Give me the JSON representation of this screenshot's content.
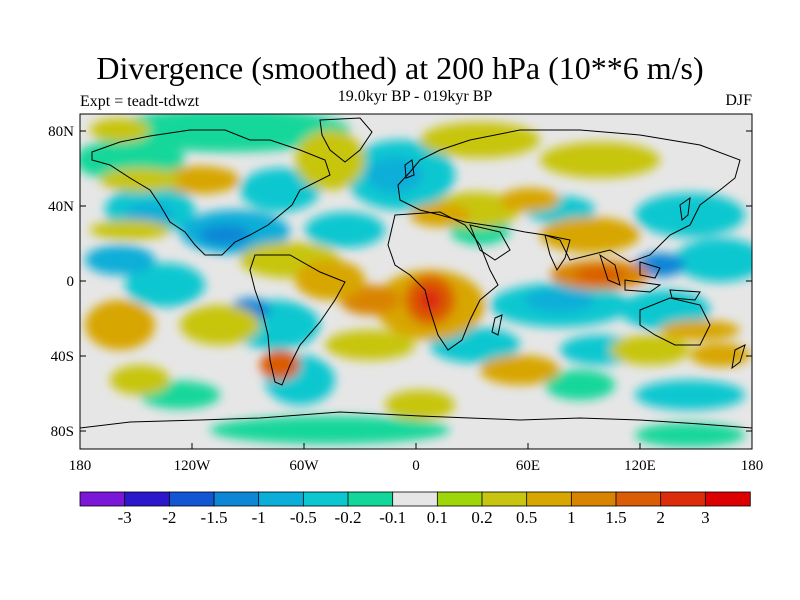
{
  "title": "Divergence (smoothed) at 200 hPa (10**6 m/s)",
  "subtitle": "19.0kyr BP - 019kyr BP",
  "experiment": "Expt = teadt-tdwzt",
  "season": "DJF",
  "lat_labels": [
    "80N",
    "40N",
    "0",
    "40S",
    "80S"
  ],
  "lon_labels": [
    "180",
    "120W",
    "60W",
    "0",
    "60E",
    "120E",
    "180"
  ],
  "colorbar": {
    "labels": [
      "-3",
      "-2",
      "-1.5",
      "-1",
      "-0.5",
      "-0.2",
      "-0.1",
      "0.1",
      "0.2",
      "0.5",
      "1",
      "1.5",
      "2",
      "3"
    ],
    "colors": [
      "#7b18d8",
      "#2d17cc",
      "#1256d4",
      "#0d86d6",
      "#0aaed8",
      "#0ac7d0",
      "#12d79a",
      "#e6e6e6",
      "#9dd70a",
      "#c8c510",
      "#d8a600",
      "#d98400",
      "#da5c05",
      "#dc2c0c",
      "#dd0000"
    ]
  }
}
